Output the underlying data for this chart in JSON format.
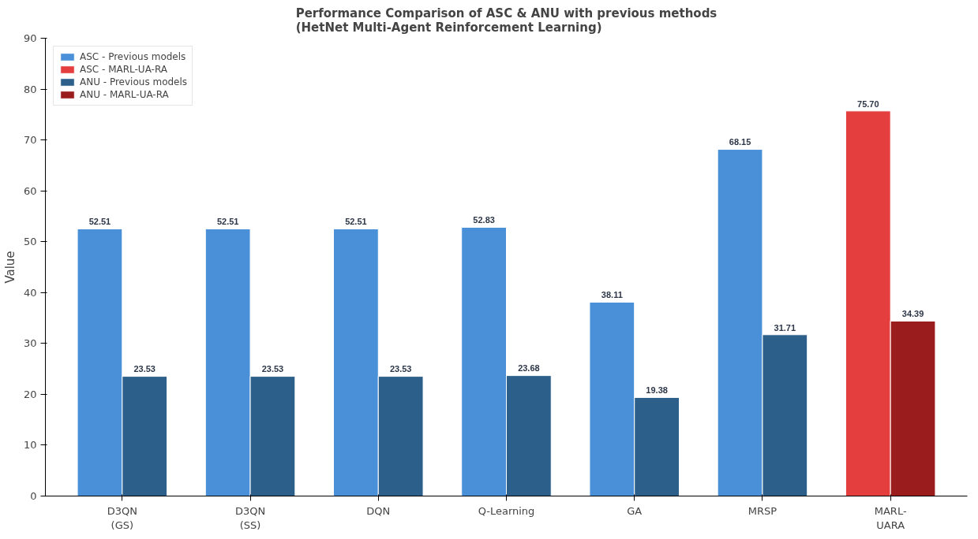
{
  "chart_data": {
    "type": "bar",
    "title": "Performance Comparison of ASC & ANU with previous methods\n(HetNet Multi-Agent Reinforcement Learning)",
    "ylabel": "Value",
    "categories": [
      "D3QN\n(GS)",
      "D3QN\n(SS)",
      "DQN",
      "Q-Learning",
      "GA",
      "MRSP",
      "MARL-\nUARA"
    ],
    "series": [
      {
        "name": "ASC - Previous models",
        "color": "#4a90d9",
        "values": [
          52.51,
          52.51,
          52.51,
          52.83,
          38.11,
          68.15,
          null
        ],
        "value_labels": [
          "52.51",
          "52.51",
          "52.51",
          "52.83",
          "38.11",
          "68.15",
          null
        ]
      },
      {
        "name": "ASC - MARL-UA-RA",
        "color": "#e53e3e",
        "values": [
          null,
          null,
          null,
          null,
          null,
          null,
          75.7
        ],
        "value_labels": [
          null,
          null,
          null,
          null,
          null,
          null,
          "75.70"
        ]
      },
      {
        "name": "ANU - Previous models",
        "color": "#2c5f8a",
        "values": [
          23.53,
          23.53,
          23.53,
          23.68,
          19.38,
          31.71,
          null
        ],
        "value_labels": [
          "23.53",
          "23.53",
          "23.53",
          "23.68",
          "19.38",
          "31.71",
          null
        ]
      },
      {
        "name": "ANU - MARL-UA-RA",
        "color": "#9b1c1c",
        "values": [
          null,
          null,
          null,
          null,
          null,
          null,
          34.39
        ],
        "value_labels": [
          null,
          null,
          null,
          null,
          null,
          null,
          "34.39"
        ]
      }
    ],
    "ylim": [
      0,
      90
    ],
    "yticks": [
      0,
      10,
      20,
      30,
      40,
      50,
      60,
      70,
      80,
      90
    ],
    "grid": false,
    "legend": "top left"
  }
}
